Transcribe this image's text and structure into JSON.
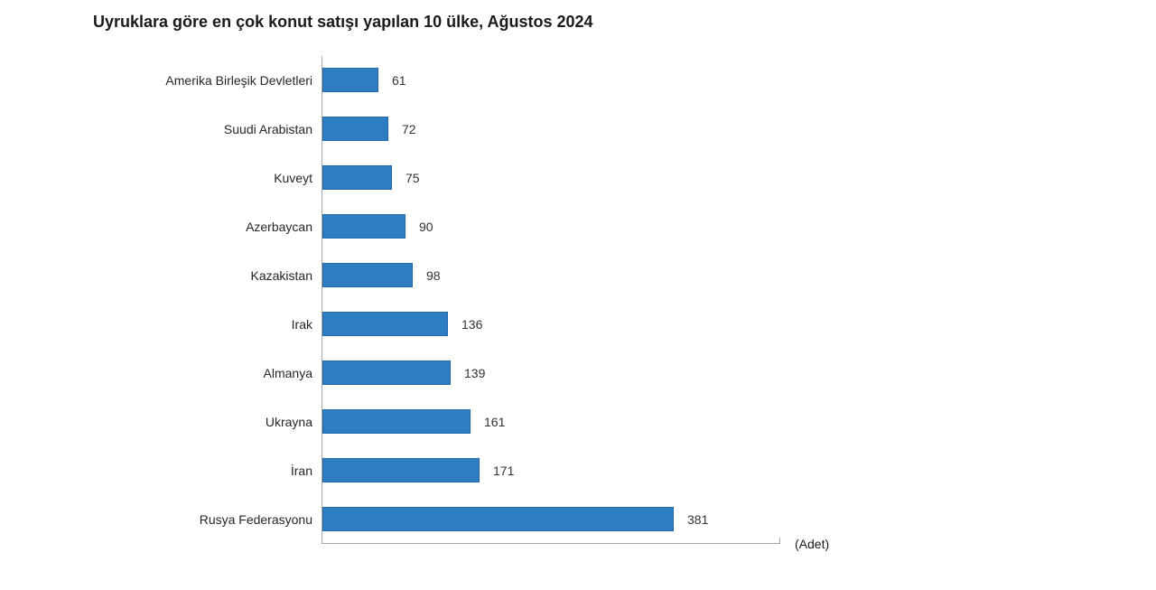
{
  "chart_data": {
    "type": "bar",
    "orientation": "horizontal",
    "title": "Uyruklara göre en çok konut satışı yapılan 10 ülke, Ağustos 2024",
    "categories": [
      "Amerika Birleşik Devletleri",
      "Suudi Arabistan",
      "Kuveyt",
      "Azerbaycan",
      "Kazakistan",
      "Irak",
      "Almanya",
      "Ukrayna",
      "İran",
      "Rusya Federasyonu"
    ],
    "values": [
      61,
      72,
      75,
      90,
      98,
      136,
      139,
      161,
      171,
      381
    ],
    "value_axis_label": "(Adet)",
    "xlim": [
      0,
      500
    ],
    "data_labels": true,
    "legend": false,
    "gridlines": false,
    "colors": {
      "bar_fill": "#2E7DC1",
      "bar_border": "#2368A8",
      "axis_line": "#A6A6A6"
    }
  }
}
